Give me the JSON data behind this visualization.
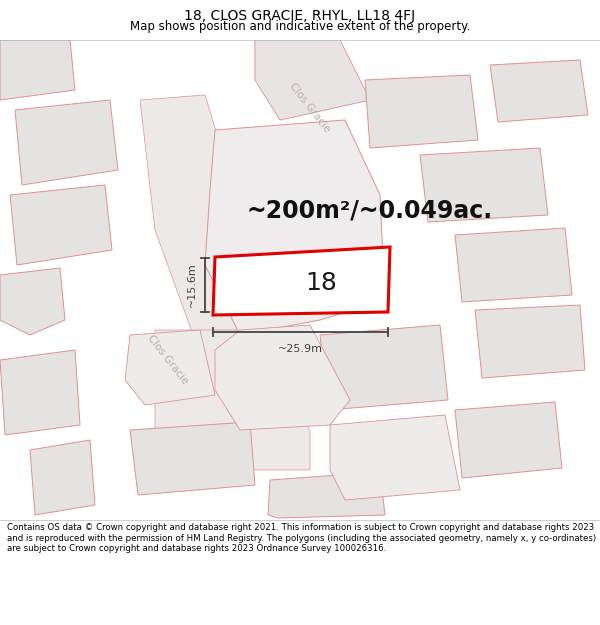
{
  "title": "18, CLOS GRACIE, RHYL, LL18 4FJ",
  "subtitle": "Map shows position and indicative extent of the property.",
  "area_text": "~200m²/~0.049ac.",
  "number_label": "18",
  "dim_width": "~25.9m",
  "dim_height": "~15.6m",
  "footer": "Contains OS data © Crown copyright and database right 2021. This information is subject to Crown copyright and database rights 2023 and is reproduced with the permission of HM Land Registry. The polygons (including the associated geometry, namely x, y co-ordinates) are subject to Crown copyright and database rights 2023 Ordnance Survey 100026316.",
  "map_bg": "#f7f4f4",
  "plot_fill": "#ffffff",
  "plot_edge": "#e00000",
  "building_fill": "#e5e2e2",
  "building_edge": "#e09090",
  "road_fill": "#f0ecec",
  "road_edge": "#e09090",
  "road_label_color": "#b8aeae",
  "dim_color": "#444444",
  "title_fontsize": 10,
  "subtitle_fontsize": 8.5,
  "area_fontsize": 17,
  "number_fontsize": 18,
  "footer_fontsize": 6.2
}
